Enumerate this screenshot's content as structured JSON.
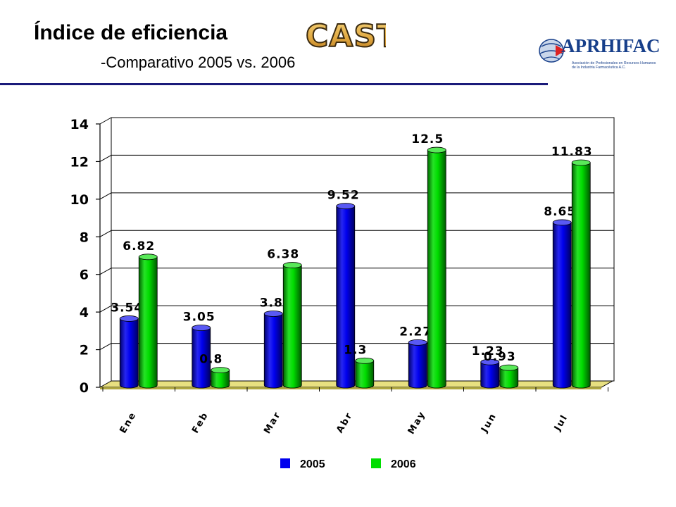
{
  "header": {
    "title": "Índice de eficiencia",
    "subtitle": "-Comparativo 2005 vs. 2006",
    "cast_logo_text": "CAST",
    "org_logo_text": "APRHIFAC",
    "org_tagline_1": "Asociación de Profesionales en Recursos Humanos",
    "org_tagline_2": "de la Industria Farmacéutica A.C."
  },
  "colors": {
    "series_2005": "#0000ee",
    "series_2006": "#00dd00",
    "floor": "#e8e080",
    "rule": "#1a1a7a"
  },
  "chart_data": {
    "type": "bar",
    "title": "",
    "xlabel": "",
    "ylabel": "",
    "ylim": [
      0,
      14
    ],
    "yticks": [
      0,
      2,
      4,
      6,
      8,
      10,
      12,
      14
    ],
    "grid": true,
    "legend_position": "bottom",
    "categories": [
      "Ene",
      "Feb",
      "Mar",
      "Abr",
      "May",
      "Jun",
      "Jul"
    ],
    "series": [
      {
        "name": "2005",
        "values": [
          3.54,
          3.05,
          3.8,
          9.52,
          2.27,
          1.23,
          8.65
        ],
        "color": "#0000ee"
      },
      {
        "name": "2006",
        "values": [
          6.82,
          0.8,
          6.38,
          1.3,
          12.5,
          0.93,
          11.83
        ],
        "color": "#00dd00"
      }
    ]
  }
}
